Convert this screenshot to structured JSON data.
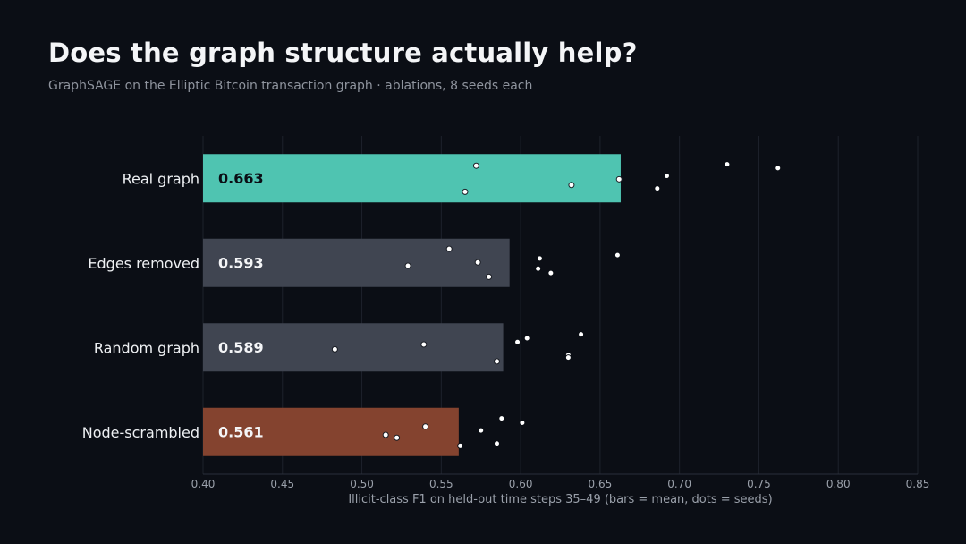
{
  "title": "Does the graph structure actually help?",
  "subtitle": "GraphSAGE on the Elliptic Bitcoin transaction graph · ablations, 8 seeds each",
  "chart_data": {
    "type": "bar",
    "orientation": "horizontal",
    "xlabel": "Illicit-class F1 on held-out time steps 35–49 (bars = mean, dots = seeds)",
    "xlim": [
      0.4,
      0.85
    ],
    "xticks": [
      "0.40",
      "0.45",
      "0.50",
      "0.55",
      "0.60",
      "0.65",
      "0.70",
      "0.75",
      "0.80",
      "0.85"
    ],
    "grid": "vertical",
    "categories": [
      "Real graph",
      "Edges removed",
      "Random graph",
      "Node-scrambled"
    ],
    "values": [
      0.663,
      0.593,
      0.589,
      0.561
    ],
    "value_labels": [
      "0.663",
      "0.593",
      "0.589",
      "0.561"
    ],
    "colors": [
      "#4fc4b1",
      "#404551",
      "#404551",
      "#84432f"
    ],
    "label_colors": [
      "#0b0e15",
      "#f4f5f7",
      "#f4f5f7",
      "#f4f5f7"
    ],
    "seeds": [
      [
        0.572,
        0.565,
        0.632,
        0.662,
        0.686,
        0.692,
        0.73,
        0.762
      ],
      [
        0.555,
        0.529,
        0.573,
        0.58,
        0.611,
        0.612,
        0.619,
        0.661
      ],
      [
        0.483,
        0.539,
        0.585,
        0.598,
        0.604,
        0.63,
        0.63,
        0.638
      ],
      [
        0.515,
        0.522,
        0.54,
        0.562,
        0.575,
        0.585,
        0.588,
        0.601
      ]
    ],
    "seed_offsets": [
      [
        -0.26,
        0.28,
        0.14,
        0.02,
        0.21,
        -0.05,
        -0.29,
        -0.21
      ],
      [
        -0.29,
        0.06,
        -0.01,
        0.29,
        0.12,
        -0.09,
        0.21,
        -0.16
      ],
      [
        0.04,
        -0.06,
        0.29,
        -0.11,
        -0.19,
        0.16,
        0.21,
        -0.27
      ],
      [
        0.06,
        0.12,
        -0.11,
        0.29,
        -0.03,
        0.24,
        -0.28,
        -0.19
      ]
    ]
  }
}
